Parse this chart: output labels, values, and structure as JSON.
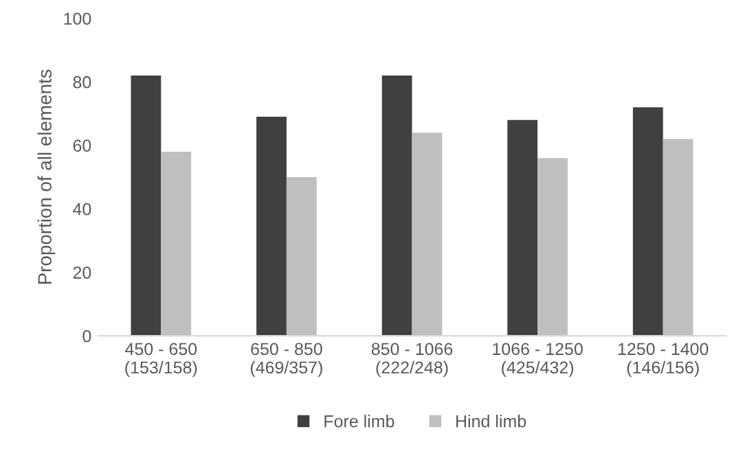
{
  "chart_data": {
    "type": "bar",
    "ylabel": "Proportion of all elements",
    "categories": [
      "450 - 650\n(153/158)",
      "650 - 850\n(469/357)",
      "850 - 1066\n(222/248)",
      "1066 - 1250\n(425/432)",
      "1250 - 1400\n(146/156)"
    ],
    "series": [
      {
        "name": "Fore limb",
        "color": "#404040",
        "values": [
          82,
          69,
          82,
          68,
          72
        ]
      },
      {
        "name": "Hind limb",
        "color": "#bfbfbf",
        "values": [
          58,
          50,
          64,
          56,
          62
        ]
      }
    ],
    "ylim": [
      0,
      100
    ],
    "yticks": [
      0,
      20,
      40,
      60,
      80,
      100
    ],
    "grid": false,
    "legend": "bottom"
  }
}
